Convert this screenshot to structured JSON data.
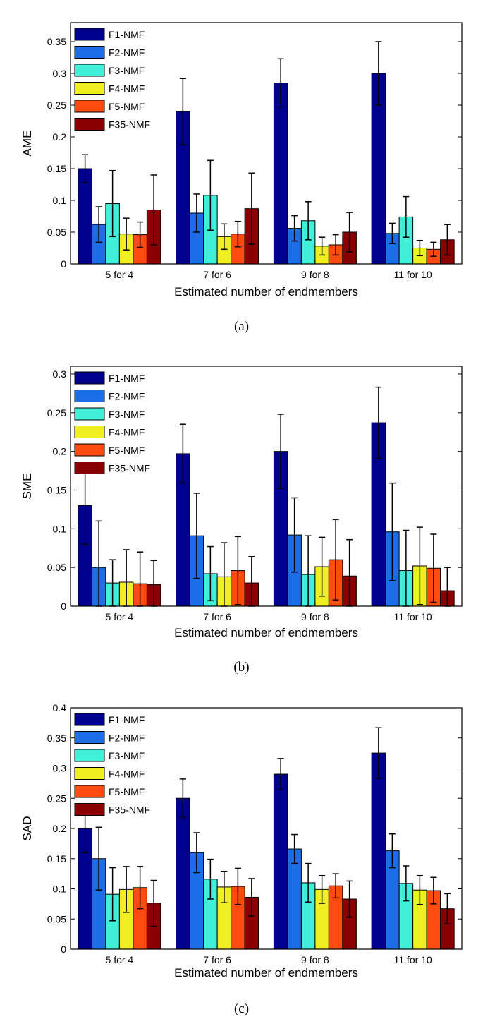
{
  "chart_data": [
    {
      "type": "bar",
      "caption": "(a)",
      "xlabel": "Estimated number of endmembers",
      "ylabel": "AME",
      "ylim": [
        0,
        0.38
      ],
      "yticks": [
        0,
        0.05,
        0.1,
        0.15,
        0.2,
        0.25,
        0.3,
        0.35
      ],
      "ytick_labels": [
        "0",
        "0.05",
        "0.1",
        "0.15",
        "0.2",
        "0.25",
        "0.3",
        "0.35"
      ],
      "categories": [
        "5 for 4",
        "7 for 6",
        "9 for 8",
        "11 for 10"
      ],
      "legend_position": "top-left",
      "error_bars": true,
      "series": [
        {
          "name": "F1-NMF",
          "color": "#00008f",
          "values": [
            0.15,
            0.24,
            0.285,
            0.3
          ],
          "errors": [
            0.022,
            0.052,
            0.038,
            0.05
          ]
        },
        {
          "name": "F2-NMF",
          "color": "#1c6ee8",
          "values": [
            0.062,
            0.08,
            0.056,
            0.048
          ],
          "errors": [
            0.028,
            0.03,
            0.02,
            0.016
          ]
        },
        {
          "name": "F3-NMF",
          "color": "#40f0d8",
          "values": [
            0.095,
            0.108,
            0.068,
            0.074
          ],
          "errors": [
            0.052,
            0.055,
            0.03,
            0.032
          ]
        },
        {
          "name": "F4-NMF",
          "color": "#f0f020",
          "values": [
            0.047,
            0.043,
            0.028,
            0.025
          ],
          "errors": [
            0.025,
            0.02,
            0.014,
            0.012
          ]
        },
        {
          "name": "F5-NMF",
          "color": "#ff4a10",
          "values": [
            0.046,
            0.047,
            0.03,
            0.023
          ],
          "errors": [
            0.02,
            0.02,
            0.016,
            0.011
          ]
        },
        {
          "name": "F35-NMF",
          "color": "#8a0000",
          "values": [
            0.085,
            0.087,
            0.05,
            0.038
          ],
          "errors": [
            0.055,
            0.056,
            0.031,
            0.024
          ]
        }
      ]
    },
    {
      "type": "bar",
      "caption": "(b)",
      "xlabel": "Estimated number of endmembers",
      "ylabel": "SME",
      "ylim": [
        0,
        0.31
      ],
      "yticks": [
        0,
        0.05,
        0.1,
        0.15,
        0.2,
        0.25,
        0.3
      ],
      "ytick_labels": [
        "0",
        "0.05",
        "0.1",
        "0.15",
        "0.2",
        "0.25",
        "0.3"
      ],
      "categories": [
        "5 for 4",
        "7 for 6",
        "9 for 8",
        "11 for 10"
      ],
      "legend_position": "top-left",
      "error_bars": true,
      "series": [
        {
          "name": "F1-NMF",
          "color": "#00008f",
          "values": [
            0.13,
            0.197,
            0.2,
            0.237
          ],
          "errors": [
            0.05,
            0.038,
            0.048,
            0.046
          ]
        },
        {
          "name": "F2-NMF",
          "color": "#1c6ee8",
          "values": [
            0.05,
            0.091,
            0.092,
            0.096
          ],
          "errors": [
            0.06,
            0.055,
            0.048,
            0.063
          ]
        },
        {
          "name": "F3-NMF",
          "color": "#40f0d8",
          "values": [
            0.03,
            0.042,
            0.041,
            0.046
          ],
          "errors": [
            0.03,
            0.035,
            0.05,
            0.052
          ]
        },
        {
          "name": "F4-NMF",
          "color": "#f0f020",
          "values": [
            0.031,
            0.038,
            0.051,
            0.052
          ],
          "errors": [
            0.042,
            0.044,
            0.038,
            0.05
          ]
        },
        {
          "name": "F5-NMF",
          "color": "#ff4a10",
          "values": [
            0.029,
            0.046,
            0.06,
            0.049
          ],
          "errors": [
            0.041,
            0.044,
            0.052,
            0.044
          ]
        },
        {
          "name": "F35-NMF",
          "color": "#8a0000",
          "values": [
            0.028,
            0.03,
            0.039,
            0.02
          ],
          "errors": [
            0.031,
            0.034,
            0.047,
            0.03
          ]
        }
      ]
    },
    {
      "type": "bar",
      "caption": "(c)",
      "xlabel": "Estimated number of endmembers",
      "ylabel": "SAD",
      "ylim": [
        0,
        0.4
      ],
      "yticks": [
        0,
        0.05,
        0.1,
        0.15,
        0.2,
        0.25,
        0.3,
        0.35,
        0.4
      ],
      "ytick_labels": [
        "0",
        "0.05",
        "0.1",
        "0.15",
        "0.2",
        "0.25",
        "0.3",
        "0.35",
        "0.4"
      ],
      "categories": [
        "5 for 4",
        "7 for 6",
        "9 for 8",
        "11 for 10"
      ],
      "legend_position": "top-left",
      "error_bars": true,
      "series": [
        {
          "name": "F1-NMF",
          "color": "#00008f",
          "values": [
            0.2,
            0.25,
            0.29,
            0.325
          ],
          "errors": [
            0.04,
            0.032,
            0.026,
            0.042
          ]
        },
        {
          "name": "F2-NMF",
          "color": "#1c6ee8",
          "values": [
            0.15,
            0.16,
            0.166,
            0.163
          ],
          "errors": [
            0.052,
            0.033,
            0.024,
            0.028
          ]
        },
        {
          "name": "F3-NMF",
          "color": "#40f0d8",
          "values": [
            0.091,
            0.116,
            0.11,
            0.109
          ],
          "errors": [
            0.044,
            0.033,
            0.032,
            0.029
          ]
        },
        {
          "name": "F4-NMF",
          "color": "#f0f020",
          "values": [
            0.099,
            0.103,
            0.099,
            0.098
          ],
          "errors": [
            0.038,
            0.026,
            0.023,
            0.024
          ]
        },
        {
          "name": "F5-NMF",
          "color": "#ff4a10",
          "values": [
            0.102,
            0.104,
            0.105,
            0.097
          ],
          "errors": [
            0.035,
            0.03,
            0.02,
            0.022
          ]
        },
        {
          "name": "F35-NMF",
          "color": "#8a0000",
          "values": [
            0.076,
            0.086,
            0.083,
            0.067
          ],
          "errors": [
            0.038,
            0.031,
            0.03,
            0.025
          ]
        }
      ]
    }
  ]
}
